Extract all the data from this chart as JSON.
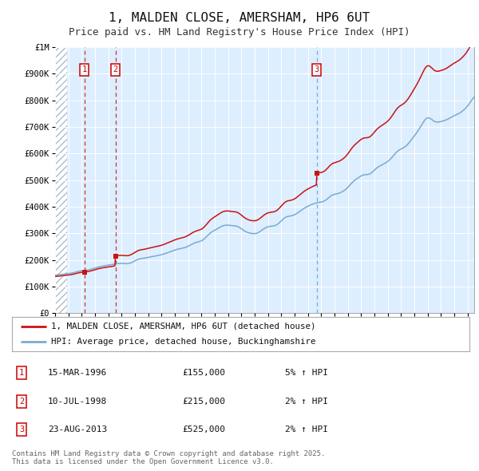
{
  "title": "1, MALDEN CLOSE, AMERSHAM, HP6 6UT",
  "subtitle": "Price paid vs. HM Land Registry's House Price Index (HPI)",
  "title_fontsize": 11.5,
  "subtitle_fontsize": 9,
  "background_color": "#ffffff",
  "plot_bg_color": "#ddeeff",
  "hatch_color": "#b0bcc8",
  "grid_color": "#ffffff",
  "line_color_red": "#cc1111",
  "line_color_blue": "#7aaad0",
  "marker_color": "#cc1111",
  "vline_color_red": "#cc3333",
  "vline_color_blue": "#7aaad0",
  "ylim": [
    0,
    1000000
  ],
  "yticks": [
    0,
    100000,
    200000,
    300000,
    400000,
    500000,
    600000,
    700000,
    800000,
    900000,
    1000000
  ],
  "ytick_labels": [
    "£0",
    "£100K",
    "£200K",
    "£300K",
    "£400K",
    "£500K",
    "£600K",
    "£700K",
    "£800K",
    "£900K",
    "£1M"
  ],
  "sale_dates": [
    1996.21,
    1998.53,
    2013.65
  ],
  "sale_prices": [
    155000,
    215000,
    525000
  ],
  "sale_labels": [
    "1",
    "2",
    "3"
  ],
  "vline_dates_red": [
    1996.21,
    1998.53
  ],
  "vline_dates_blue": [
    2013.65
  ],
  "legend_line1": "1, MALDEN CLOSE, AMERSHAM, HP6 6UT (detached house)",
  "legend_line2": "HPI: Average price, detached house, Buckinghamshire",
  "table_rows": [
    {
      "num": "1",
      "date": "15-MAR-1996",
      "price": "£155,000",
      "hpi": "5% ↑ HPI"
    },
    {
      "num": "2",
      "date": "10-JUL-1998",
      "price": "£215,000",
      "hpi": "2% ↑ HPI"
    },
    {
      "num": "3",
      "date": "23-AUG-2013",
      "price": "£525,000",
      "hpi": "2% ↑ HPI"
    }
  ],
  "footnote": "Contains HM Land Registry data © Crown copyright and database right 2025.\nThis data is licensed under the Open Government Licence v3.0.",
  "xmin": 1994.0,
  "xmax": 2025.5,
  "hatch_xmax": 1994.92
}
